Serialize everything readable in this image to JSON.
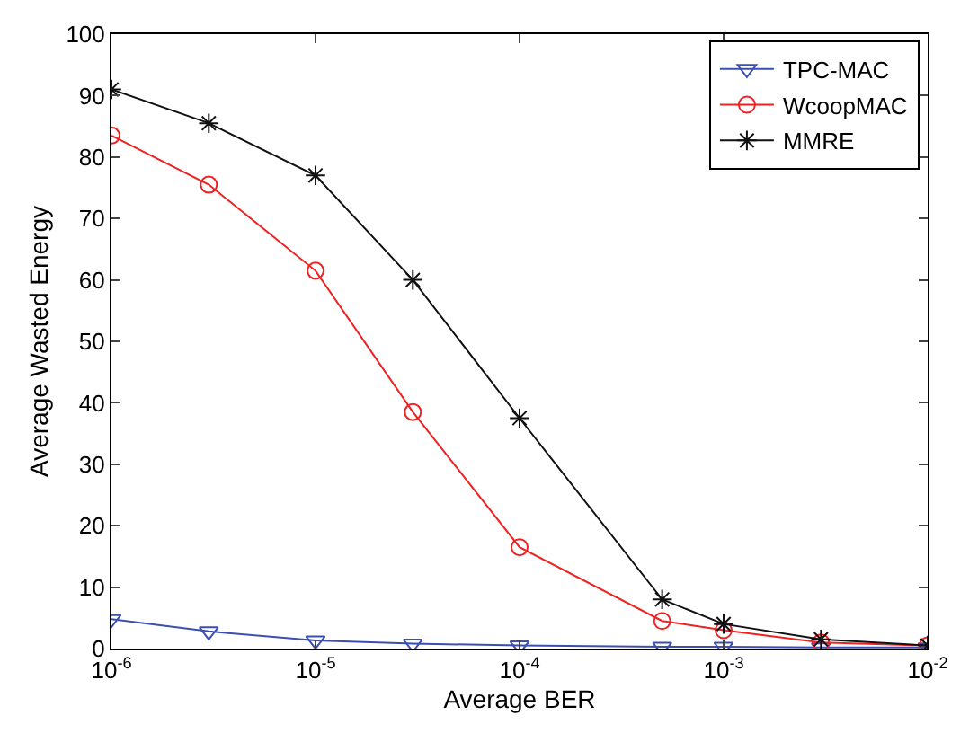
{
  "chart_data": {
    "type": "line",
    "xlabel": "Average BER",
    "ylabel": "Average Wasted Energy",
    "log": "x",
    "legend": "top right",
    "xlim": [
      1e-06,
      0.01
    ],
    "ylim": [
      0,
      100
    ],
    "xticks": [
      {
        "value": 1e-06,
        "label": "10$^{-6}$"
      },
      {
        "value": 1e-05,
        "label": "10$^{-5}$"
      },
      {
        "value": 0.0001,
        "label": "10$^{-4}$"
      },
      {
        "value": 0.001,
        "label": "10$^{-3}$"
      },
      {
        "value": 0.01,
        "label": "10$^{-2}$"
      }
    ],
    "yticks": [
      0,
      10,
      20,
      30,
      40,
      50,
      60,
      70,
      80,
      90,
      100
    ],
    "x": [
      1e-06,
      3e-06,
      1e-05,
      3e-05,
      0.0001,
      0.0005,
      0.001,
      0.003,
      0.01
    ],
    "series": [
      {
        "name": "TPC-MAC",
        "color": "#3a4fb0",
        "marker": "triangle",
        "values": [
          4.8,
          2.8,
          1.3,
          0.8,
          0.5,
          0.3,
          0.3,
          0.2,
          0.2
        ]
      },
      {
        "name": "WcoopMAC",
        "color": "#ee2222",
        "marker": "circle",
        "values": [
          83.5,
          75.5,
          61.5,
          38.5,
          16.5,
          4.5,
          3,
          1,
          0.5
        ]
      },
      {
        "name": "MMRE",
        "color": "#111111",
        "marker": "cross",
        "values": [
          91,
          85.5,
          77,
          60,
          37.5,
          8,
          4,
          1.5,
          0.5
        ]
      }
    ]
  }
}
